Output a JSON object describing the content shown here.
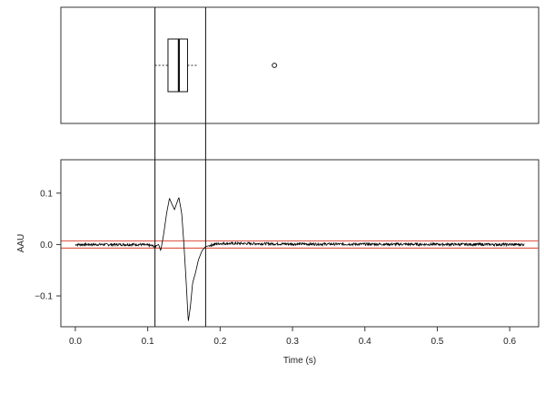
{
  "chart_data": [
    {
      "type": "boxplot",
      "orientation": "horizontal",
      "x_axis_shared": true,
      "box": {
        "whisker_low": 0.11,
        "q1": 0.128,
        "median": 0.143,
        "q3": 0.155,
        "whisker_high": 0.17,
        "outliers": [
          0.275
        ]
      }
    },
    {
      "type": "line",
      "xlabel": "Time (s)",
      "ylabel": "AAU",
      "xlim": [
        -0.02,
        0.64
      ],
      "ylim": [
        -0.16,
        0.165
      ],
      "xticks": [
        0.0,
        0.1,
        0.2,
        0.3,
        0.4,
        0.5,
        0.6
      ],
      "xtick_labels": [
        "0.0",
        "0.1",
        "0.2",
        "0.3",
        "0.4",
        "0.5",
        "0.6"
      ],
      "yticks": [
        -0.1,
        0.0,
        0.1
      ],
      "ytick_labels": [
        "−0.1",
        "0.0",
        "0.1"
      ],
      "grid": false,
      "vertical_lines_x": [
        0.11,
        0.18
      ],
      "threshold_lines_y": [
        0.007,
        -0.007
      ],
      "threshold_color": "#e06050",
      "signal": {
        "x_range": [
          0.0,
          0.62
        ],
        "x": [
          0.0,
          0.09,
          0.105,
          0.11,
          0.115,
          0.118,
          0.122,
          0.126,
          0.13,
          0.133,
          0.137,
          0.14,
          0.143,
          0.147,
          0.15,
          0.153,
          0.156,
          0.159,
          0.162,
          0.166,
          0.17,
          0.175,
          0.18,
          0.19,
          0.2,
          0.23,
          0.3,
          0.62
        ],
        "y": [
          0.0,
          0.0,
          -0.002,
          -0.004,
          0.0,
          -0.012,
          0.02,
          0.06,
          0.09,
          0.08,
          0.068,
          0.08,
          0.092,
          0.06,
          0.0,
          -0.07,
          -0.15,
          -0.12,
          -0.075,
          -0.055,
          -0.03,
          -0.012,
          -0.004,
          0.0,
          0.002,
          0.002,
          0.001,
          0.0
        ],
        "noise_amplitude": 0.0025,
        "color": "#000000"
      }
    }
  ]
}
